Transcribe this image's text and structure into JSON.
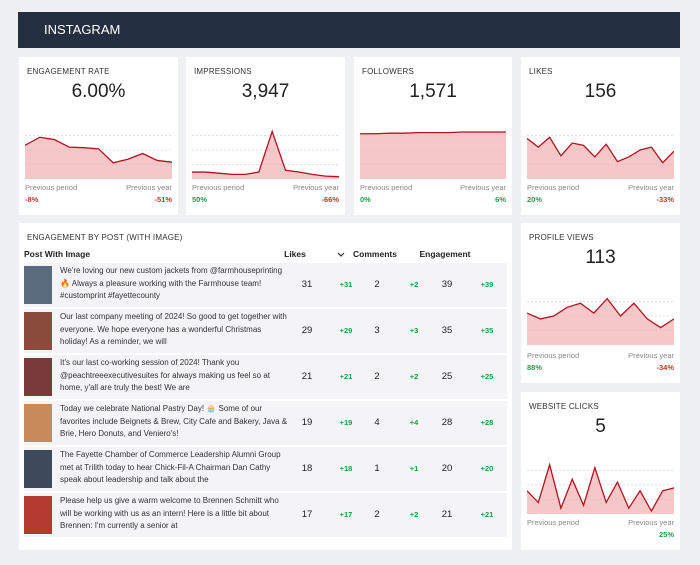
{
  "header": {
    "title": "INSTAGRAM"
  },
  "cards": [
    {
      "label": "ENGAGEMENT RATE",
      "value": "6.00%",
      "spark": [
        58,
        72,
        68,
        55,
        54,
        52,
        28,
        34,
        44,
        32,
        29
      ],
      "prev_label": "Previous period",
      "prev_value": "-8%",
      "year_label": "Previous year",
      "year_value": "-51%"
    },
    {
      "label": "IMPRESSIONS",
      "value": "3,947",
      "spark": [
        12,
        12,
        10,
        8,
        8,
        12,
        82,
        15,
        12,
        8,
        5,
        4
      ],
      "prev_label": "Previous period",
      "prev_value": "50%",
      "year_label": "Previous year",
      "year_value": "-66%"
    },
    {
      "label": "FOLLOWERS",
      "value": "1,571",
      "spark": [
        78,
        78,
        79,
        79,
        80,
        80,
        80,
        81,
        81,
        81,
        81
      ],
      "prev_label": "Previous period",
      "prev_value": "0%",
      "year_label": "Previous year",
      "year_value": "6%"
    },
    {
      "label": "LIKES",
      "value": "156",
      "spark": [
        70,
        55,
        72,
        40,
        62,
        58,
        38,
        60,
        30,
        38,
        50,
        55,
        28,
        48
      ],
      "prev_label": "Previous period",
      "prev_value": "20%",
      "year_label": "Previous year",
      "year_value": "-33%"
    },
    {
      "label": "PROFILE VIEWS",
      "value": "113",
      "spark": [
        55,
        45,
        50,
        65,
        72,
        55,
        80,
        50,
        72,
        45,
        30,
        45
      ],
      "prev_label": "Previous period",
      "prev_value": "88%",
      "year_label": "Previous year",
      "year_value": "-34%"
    },
    {
      "label": "WEBSITE CLICKS",
      "value": "5",
      "spark": [
        40,
        20,
        85,
        10,
        60,
        15,
        80,
        20,
        55,
        10,
        40,
        5,
        40,
        45
      ],
      "prev_label": "Previous period",
      "year_label": "Previous year",
      "year_value": "25%"
    }
  ],
  "table": {
    "title": "ENGAGEMENT BY POST (WITH IMAGE)",
    "columns": [
      "Post With Image",
      "Likes",
      "Comments",
      "Engagement"
    ],
    "rows": [
      [
        "We're loving our new custom jackets from @farmhouseprinting 🔥 Always a pleasure working with the Farmhouse team! #customprint #fayettecounty",
        "31",
        "+31",
        "2",
        "+2",
        "39",
        "+39"
      ],
      [
        "Our last company meeting of 2024! So good to get together with everyone. We hope everyone has a wonderful Christmas holiday! As a reminder, we will",
        "29",
        "+29",
        "3",
        "+3",
        "35",
        "+35"
      ],
      [
        "It's our last co-working session of 2024! Thank you @peachtreeexecutivesuites for always making us feel so at home, y'all are truly the best! We are",
        "21",
        "+21",
        "2",
        "+2",
        "25",
        "+25"
      ],
      [
        "Today we celebrate National Pastry Day! 🧁 Some of our favorites include Beignets & Brew, City Cafe and Bakery, Java & Brie, Hero Donuts, and Veniero's!",
        "19",
        "+19",
        "4",
        "+4",
        "28",
        "+28"
      ],
      [
        "The Fayette Chamber of Commerce Leadership Alumni Group met at Trilith today to hear Chick-Fil-A Chairman Dan Cathy speak about leadership and talk about the",
        "18",
        "+18",
        "1",
        "+1",
        "20",
        "+20"
      ],
      [
        "Please help us give a warm welcome to Brennen Schmitt who will be working with us as an intern! Here is a little bit about Brennen: I'm currently a senior at",
        "17",
        "+17",
        "2",
        "+2",
        "21",
        "+21"
      ]
    ]
  }
}
